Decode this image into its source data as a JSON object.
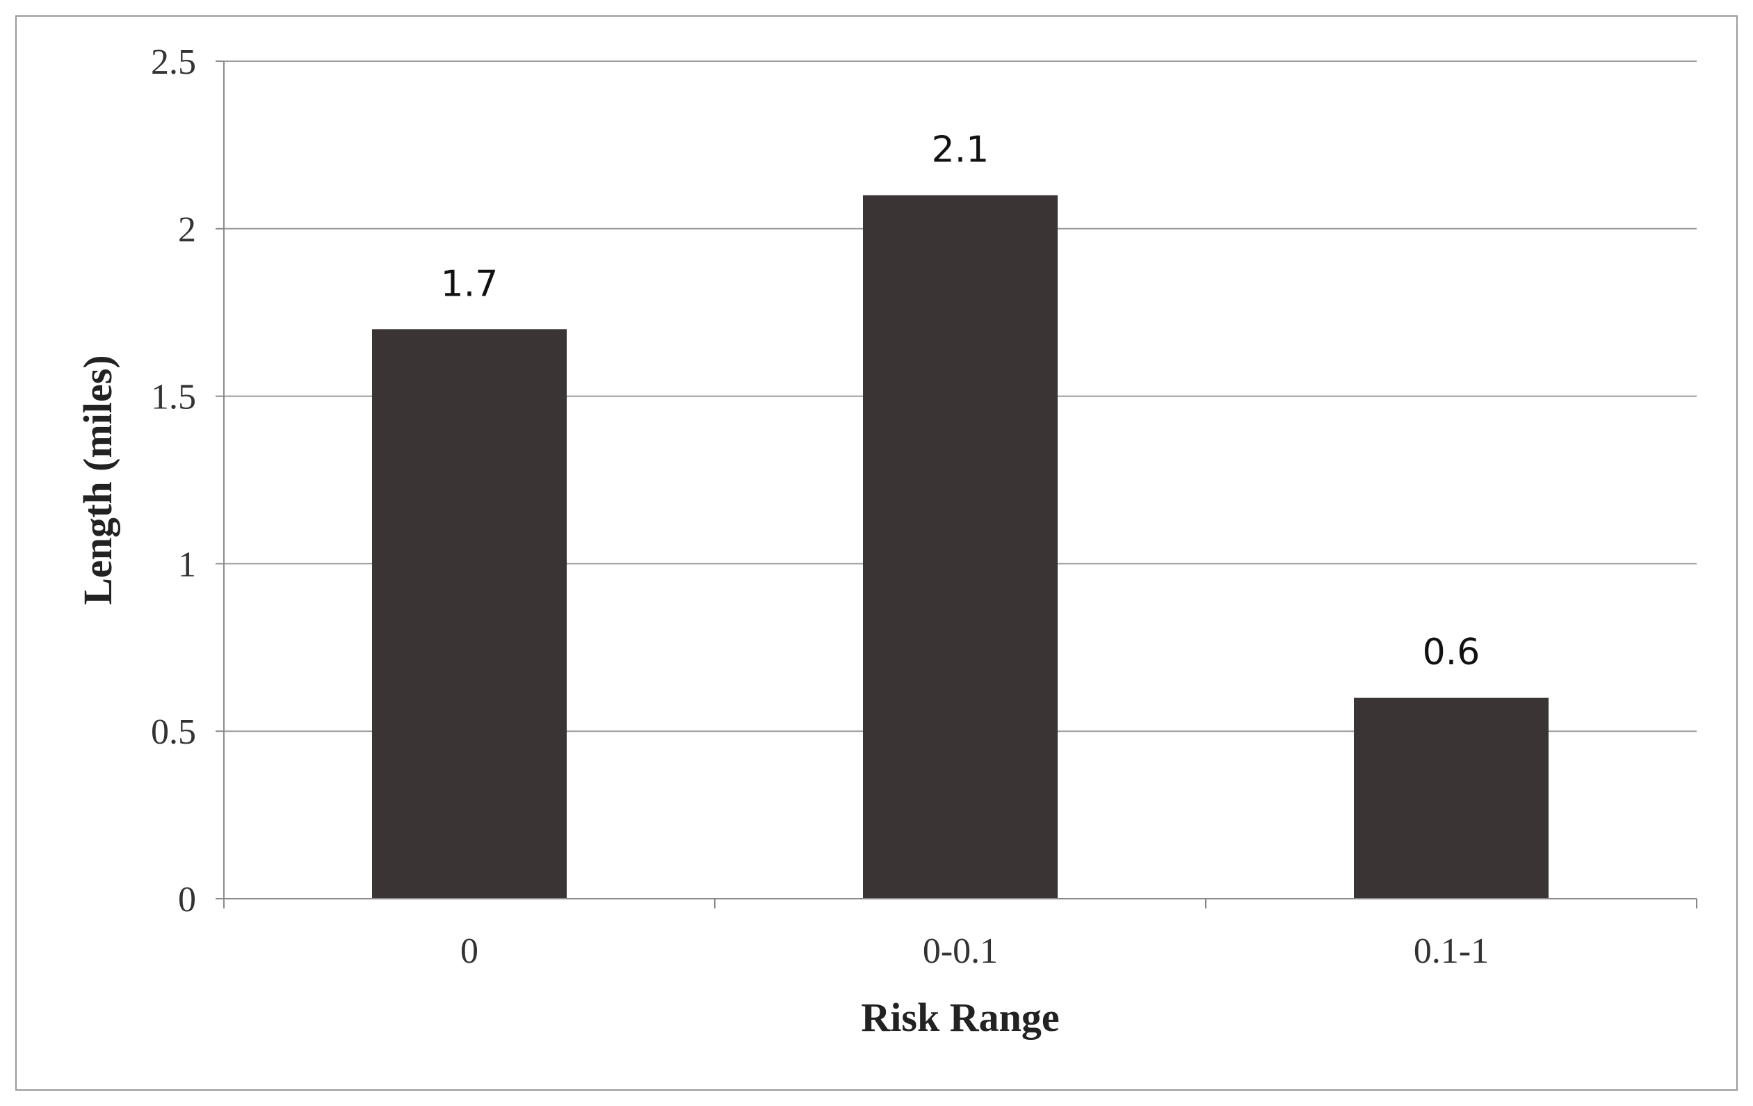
{
  "chart_data": {
    "type": "bar",
    "categories": [
      "0",
      "0-0.1",
      "0.1-1"
    ],
    "values": [
      1.7,
      2.1,
      0.6
    ],
    "data_labels": [
      "1.7",
      "2.1",
      "0.6"
    ],
    "title": "",
    "xlabel": "Risk Range",
    "ylabel": "Length (miles)",
    "ylim": [
      0,
      2.5
    ],
    "yticks": [
      0,
      0.5,
      1,
      1.5,
      2,
      2.5
    ],
    "ytick_labels": [
      "0",
      "0.5",
      "1",
      "1.5",
      "2",
      "2.5"
    ],
    "grid": true,
    "legend": "none",
    "bar_color": "#3a3435",
    "grid_color": "#9a9a9a"
  }
}
